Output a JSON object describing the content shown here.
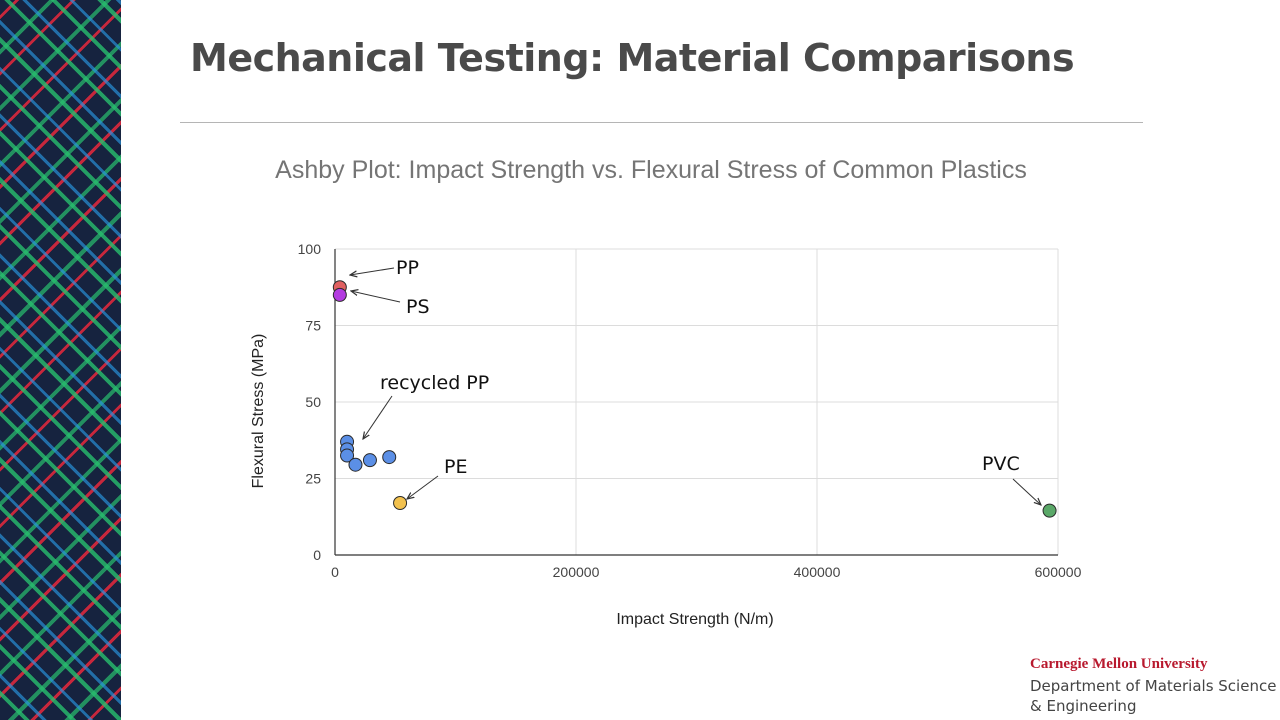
{
  "slide": {
    "title": "Mechanical Testing: Material Comparisons"
  },
  "branding": {
    "university": "Carnegie Mellon University",
    "department_line1": "Department of Materials Science",
    "department_line2": "& Engineering",
    "university_color": "#b8192e"
  },
  "chart_data": {
    "type": "scatter",
    "title": "Ashby Plot: Impact Strength vs. Flexural Stress of Common Plastics",
    "xlabel": "Impact Strength (N/m)",
    "ylabel": "Flexural Stress (MPa)",
    "xlim": [
      0,
      600000
    ],
    "ylim": [
      0,
      100
    ],
    "xticks": [
      0,
      200000,
      400000,
      600000
    ],
    "xtick_labels": [
      "0",
      "200000",
      "400000",
      "600000"
    ],
    "yticks": [
      0,
      25,
      50,
      75,
      100
    ],
    "ytick_labels": [
      "0",
      "25",
      "50",
      "75",
      "100"
    ],
    "grid": true,
    "legend": "none",
    "series": [
      {
        "name": "PP",
        "color": "#e06060",
        "points": [
          {
            "x": 4000,
            "y": 87.5
          }
        ]
      },
      {
        "name": "PS",
        "color": "#b33be0",
        "points": [
          {
            "x": 4000,
            "y": 85
          }
        ]
      },
      {
        "name": "recycled PP",
        "color": "#5b8fe6",
        "points": [
          {
            "x": 10000,
            "y": 37
          },
          {
            "x": 10000,
            "y": 34.5
          },
          {
            "x": 10000,
            "y": 32.5
          },
          {
            "x": 17000,
            "y": 29.5
          },
          {
            "x": 29000,
            "y": 31
          },
          {
            "x": 45000,
            "y": 32
          }
        ]
      },
      {
        "name": "PE",
        "color": "#f2c14e",
        "points": [
          {
            "x": 54000,
            "y": 17
          }
        ]
      },
      {
        "name": "PVC",
        "color": "#5aa868",
        "points": [
          {
            "x": 593000,
            "y": 14.5
          }
        ]
      }
    ],
    "annotations": [
      {
        "text": "PP",
        "series": "PP"
      },
      {
        "text": "PS",
        "series": "PS"
      },
      {
        "text": "recycled PP",
        "series": "recycled PP"
      },
      {
        "text": "PE",
        "series": "PE"
      },
      {
        "text": "PVC",
        "series": "PVC"
      }
    ]
  }
}
